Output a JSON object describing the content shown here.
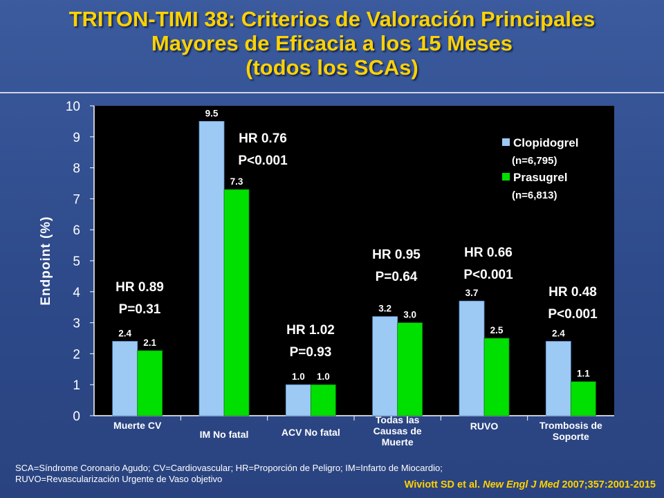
{
  "title": {
    "line1": "TRITON-TIMI 38: Criterios de Valoración Principales",
    "line2": "Mayores de Eficacia a los 15 Meses",
    "line3": "(todos los SCAs)"
  },
  "footnote": {
    "line1": "SCA=Síndrome Coronario Agudo; CV=Cardiovascular; HR=Proporción de Peligro; IM=Infarto de Miocardio;",
    "line2": "RUVO=Revascularización Urgente de Vaso objetivo"
  },
  "citation": {
    "authors": "Wiviott SD et al.",
    "journal": "New Engl J Med",
    "ref": "2007;357:2001-2015"
  },
  "colors": {
    "clopidogrel": "#9ccaf5",
    "prasugrel": "#00e000",
    "plot_bg": "#000000",
    "text": "#ffffff",
    "title": "#ffd200"
  },
  "chart_data": {
    "type": "bar",
    "ylabel": "Endpoint (%)",
    "ylim": [
      0,
      10
    ],
    "yticks": [
      "0",
      "1",
      "2",
      "3",
      "4",
      "5",
      "6",
      "7",
      "8",
      "9",
      "10"
    ],
    "grid": false,
    "legend_position": "top-right",
    "categories": [
      [
        "Muerte CV"
      ],
      [
        "IM No fatal"
      ],
      [
        "ACV No fatal"
      ],
      [
        "Todas las",
        "Causas de",
        "Muerte"
      ],
      [
        "RUVO"
      ],
      [
        "Trombosis de",
        "Soporte"
      ]
    ],
    "series": [
      {
        "name": "Clopidogrel",
        "sub": "(n=6,795)",
        "values": [
          2.4,
          9.5,
          1.0,
          3.2,
          3.7,
          2.4
        ],
        "labels": [
          "2.4",
          "9.5",
          "1.0",
          "3.2",
          "3.7",
          "2.4"
        ]
      },
      {
        "name": "Prasugrel",
        "sub": "(n=6,813)",
        "values": [
          2.1,
          7.3,
          1.0,
          3.0,
          2.5,
          1.1
        ],
        "labels": [
          "2.1",
          "7.3",
          "1.0",
          "3.0",
          "2.5",
          "1.1"
        ]
      }
    ],
    "annotations": [
      {
        "hr": "HR 0.89",
        "p": "P=0.31"
      },
      {
        "hr": "HR 0.76",
        "p": "P<0.001"
      },
      {
        "hr": "HR 1.02",
        "p": "P=0.93"
      },
      {
        "hr": "HR 0.95",
        "p": "P=0.64"
      },
      {
        "hr": "HR 0.66",
        "p": "P<0.001"
      },
      {
        "hr": "HR 0.48",
        "p": "P<0.001"
      }
    ]
  }
}
